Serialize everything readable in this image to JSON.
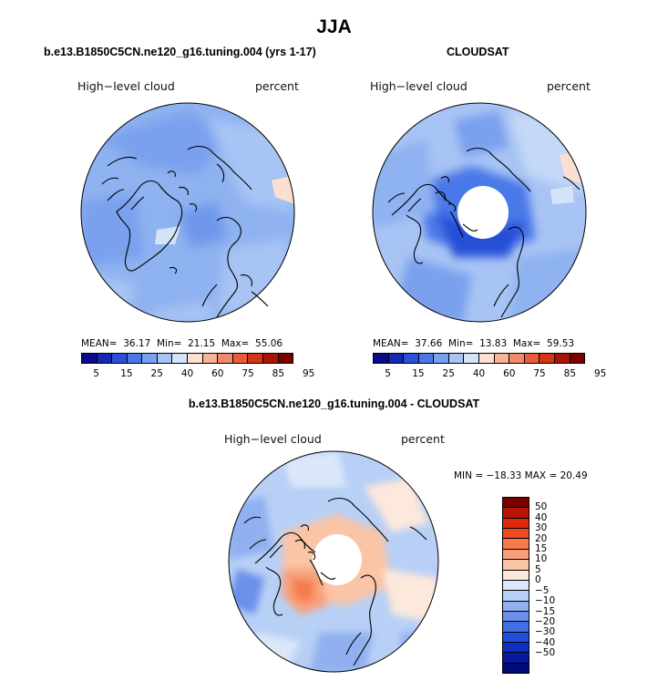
{
  "title": "JJA",
  "panels": {
    "model": {
      "title": "b.e13.B1850C5CN.ne120_g16.tuning.004 (yrs 1-17)",
      "variable": "High−level cloud",
      "units": "percent",
      "mean_label": "MEAN=",
      "mean": "36.17",
      "min_label": "Min=",
      "min": "21.15",
      "max_label": "Max=",
      "max": "55.06"
    },
    "obs": {
      "title": "CLOUDSAT",
      "variable": "High−level cloud",
      "units": "percent",
      "mean_label": "MEAN=",
      "mean": "37.66",
      "min_label": "Min=",
      "min": "13.83",
      "max_label": "Max=",
      "max": "59.53"
    },
    "diff": {
      "title": "b.e13.B1850C5CN.ne120_g16.tuning.004 - CLOUDSAT",
      "variable": "High−level cloud",
      "units": "percent",
      "range_text": "MIN = −18.33 MAX =  20.49"
    }
  },
  "colorbar_abs": {
    "colors": [
      "#0a0a8a",
      "#1428b4",
      "#2850d8",
      "#4a78e8",
      "#7aa0f0",
      "#a8c4f4",
      "#d4e4f8",
      "#fbe0d2",
      "#f6b49a",
      "#f08a6a",
      "#e85c3c",
      "#d43418",
      "#a81406",
      "#7a0000"
    ],
    "labels": [
      "5",
      "15",
      "25",
      "40",
      "60",
      "75",
      "85",
      "95"
    ]
  },
  "colorbar_diff": {
    "colors": [
      "#7a0000",
      "#b81404",
      "#e02a10",
      "#f04a24",
      "#f67a4c",
      "#f8a07a",
      "#fac4a6",
      "#fde8dc",
      "#dce8fa",
      "#b8d0f6",
      "#90b0f0",
      "#6a90ea",
      "#4070e4",
      "#2050dc",
      "#1030c4",
      "#0818a0",
      "#000a7a"
    ],
    "labels": [
      "50",
      "40",
      "30",
      "20",
      "15",
      "10",
      "5",
      "0",
      "−5",
      "−10",
      "−15",
      "−20",
      "−30",
      "−40",
      "−50"
    ]
  }
}
